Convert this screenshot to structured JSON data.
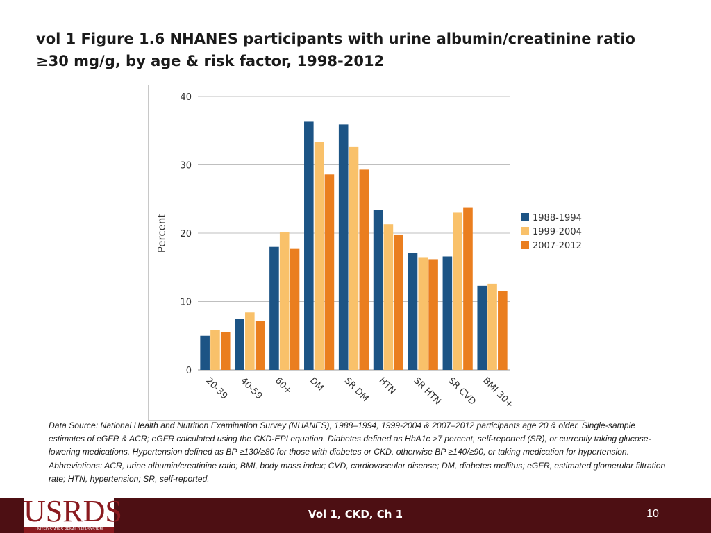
{
  "slide": {
    "title": "vol 1 Figure 1.6  NHANES participants with urine albumin/creatinine ratio ≥30 mg/g, by age & risk factor, 1998-2012",
    "source": "Data Source: National Health and Nutrition Examination Survey (NHANES), 1988–1994, 1999-2004 & 2007–2012 participants age 20 & older. Single-sample estimates of eGFR & ACR; eGFR calculated using the CKD-EPI equation. Diabetes defined as HbA1c >7 percent, self-reported (SR), or currently taking glucose-lowering medications. Hypertension defined as BP ≥130/≥80 for those with diabetes or CKD, otherwise BP ≥140/≥90, or taking medication for hypertension. Abbreviations: ACR, urine albumin/creatinine ratio; BMI, body mass index; CVD, cardiovascular disease; DM, diabetes mellitus; eGFR, estimated glomerular filtration rate; HTN, hypertension; SR, self-reported.",
    "footer_center": "Vol 1, CKD, Ch 1",
    "page_number": "10",
    "logo_text": "USRDS",
    "logo_subtext": "UNITED STATES RENAL DATA SYSTEM"
  },
  "chart_data": {
    "type": "bar",
    "title": "",
    "xlabel": "",
    "ylabel": "Percent",
    "ylim": [
      0,
      40
    ],
    "yticks": [
      "0",
      "10",
      "20",
      "30",
      "40"
    ],
    "grid": true,
    "legend_position": "right",
    "categories": [
      "20-39",
      "40-59",
      "60+",
      "DM",
      "SR DM",
      "HTN",
      "SR HTN",
      "SR CVD",
      "BMI 30+"
    ],
    "series": [
      {
        "name": "1988-1994",
        "color": "#1c5485",
        "values": [
          5.0,
          7.5,
          18.0,
          36.3,
          35.9,
          23.4,
          17.1,
          16.6,
          12.3
        ]
      },
      {
        "name": "1999-2004",
        "color": "#f9c16a",
        "values": [
          5.8,
          8.4,
          20.1,
          33.3,
          32.6,
          21.3,
          16.4,
          23.0,
          12.6
        ]
      },
      {
        "name": "2007-2012",
        "color": "#ea7e1f",
        "values": [
          5.5,
          7.2,
          17.7,
          28.6,
          29.3,
          19.8,
          16.2,
          23.8,
          11.5
        ]
      }
    ]
  }
}
